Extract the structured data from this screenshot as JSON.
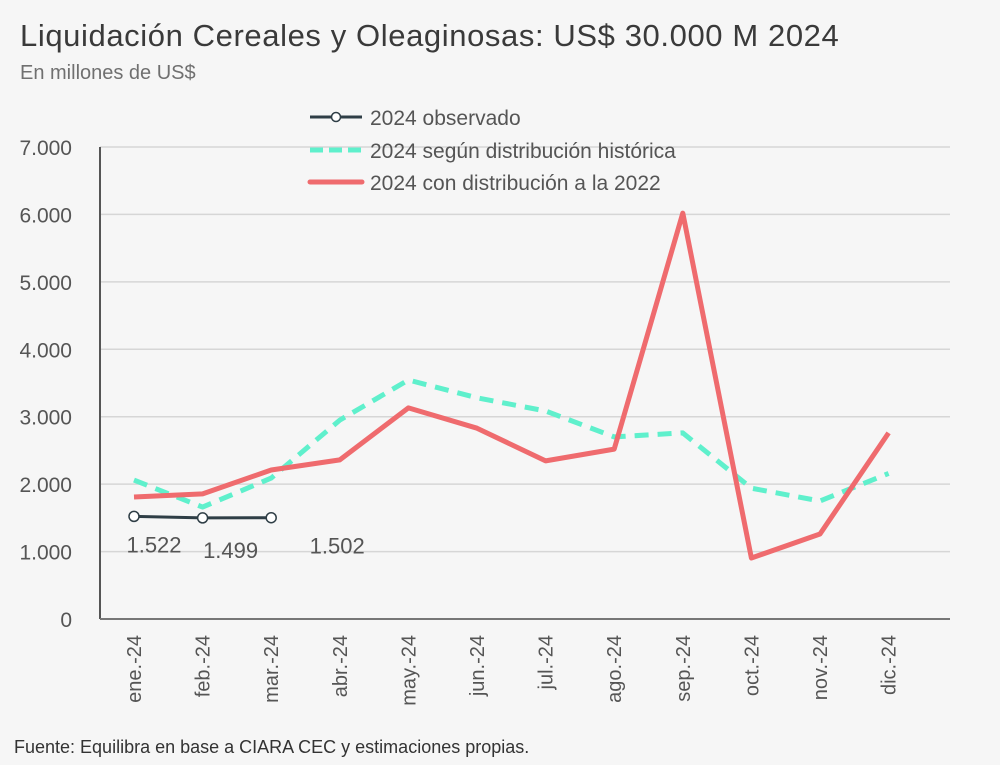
{
  "header": {
    "title": "Liquidación Cereales y Oleaginosas: US$ 30.000 M 2024",
    "subtitle": "En millones de US$"
  },
  "footer": {
    "source": "Fuente: Equilibra en base a CIARA CEC y estimaciones propias."
  },
  "chart_data": {
    "type": "line",
    "title": "Liquidación Cereales y Oleaginosas: US$ 30.000 M 2024",
    "subtitle": "En millones de US$",
    "xlabel": "",
    "ylabel": "",
    "ylim": [
      0,
      7000
    ],
    "yticks": [
      0,
      1000,
      2000,
      3000,
      4000,
      5000,
      6000,
      7000
    ],
    "ytick_labels": [
      "0",
      "1.000",
      "2.000",
      "3.000",
      "4.000",
      "5.000",
      "6.000",
      "7.000"
    ],
    "grid": true,
    "legend_position": "top-center",
    "categories": [
      "ene.-24",
      "feb.-24",
      "mar.-24",
      "abr.-24",
      "may.-24",
      "jun.-24",
      "jul.-24",
      "ago.-24",
      "sep.-24",
      "oct.-24",
      "nov.-24",
      "dic.-24"
    ],
    "series": [
      {
        "name": "2024 observado",
        "color": "#2f3e46",
        "style": "solid-markers",
        "values": [
          1522,
          1499,
          1502,
          null,
          null,
          null,
          null,
          null,
          null,
          null,
          null,
          null
        ],
        "labels": [
          "1.522",
          "1.499",
          "1.502"
        ]
      },
      {
        "name": "2024 según distribución histórica",
        "color": "#5ff0cc",
        "style": "dashed",
        "values": [
          2060,
          1660,
          2090,
          2950,
          3545,
          3280,
          3085,
          2700,
          2760,
          1940,
          1750,
          2160
        ]
      },
      {
        "name": "2024 con distribución a la 2022",
        "color": "#ef6b6e",
        "style": "solid",
        "values": [
          1810,
          1855,
          2210,
          2360,
          3130,
          2830,
          2345,
          2520,
          6020,
          905,
          1260,
          2760
        ]
      }
    ]
  }
}
